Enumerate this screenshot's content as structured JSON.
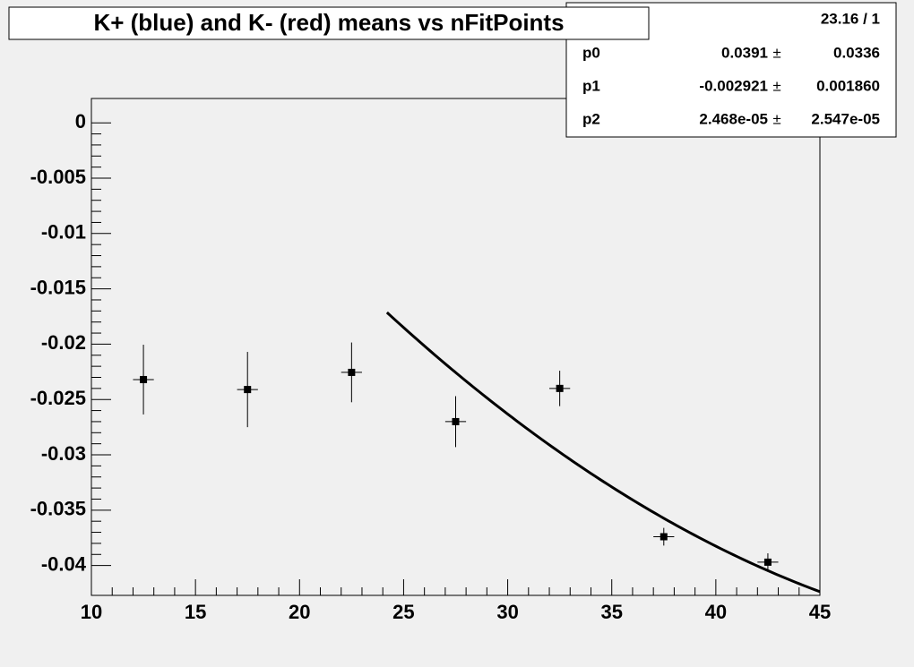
{
  "chart_data": {
    "type": "scatter",
    "title": "K+ (blue) and K- (red) means vs nFitPoints",
    "x": [
      12.5,
      17.5,
      22.5,
      27.5,
      32.5,
      37.5,
      42.5
    ],
    "x_errors": [
      0.5,
      0.5,
      0.5,
      0.5,
      0.5,
      0.5,
      0.5
    ],
    "values": [
      -0.0232,
      -0.0241,
      -0.02255,
      -0.027,
      -0.024,
      -0.0374,
      -0.0397
    ],
    "y_errors": [
      0.00315,
      0.0034,
      0.0027,
      0.0023,
      0.0016,
      0.0008,
      0.0008
    ],
    "color": "#000000",
    "fit": {
      "color": "#000000",
      "xlim": [
        24.2,
        45
      ]
    },
    "stats": {
      "chi2_ndf": "23.16 / 1",
      "separator": "±",
      "params": [
        {
          "name": "p0",
          "value": 0.0391,
          "error": 0.0336
        },
        {
          "name": "p1",
          "value": -0.002921,
          "error": {
            "value": 0.00186,
            "label": "0.001860"
          }
        },
        {
          "name": "p2",
          "value": {
            "value": 2.468e-05,
            "label": "2.468e-05"
          },
          "error": {
            "value": 2.547e-05,
            "label": "2.547e-05"
          }
        }
      ]
    },
    "xlim": [
      10,
      45
    ],
    "xticks": [
      10,
      15,
      20,
      25,
      30,
      35,
      40,
      45
    ],
    "ylim": [
      -0.0427,
      0.0022
    ],
    "yticks": [
      0,
      -0.005,
      -0.01,
      -0.015,
      -0.02,
      -0.025,
      -0.03,
      -0.035,
      -0.04
    ]
  }
}
